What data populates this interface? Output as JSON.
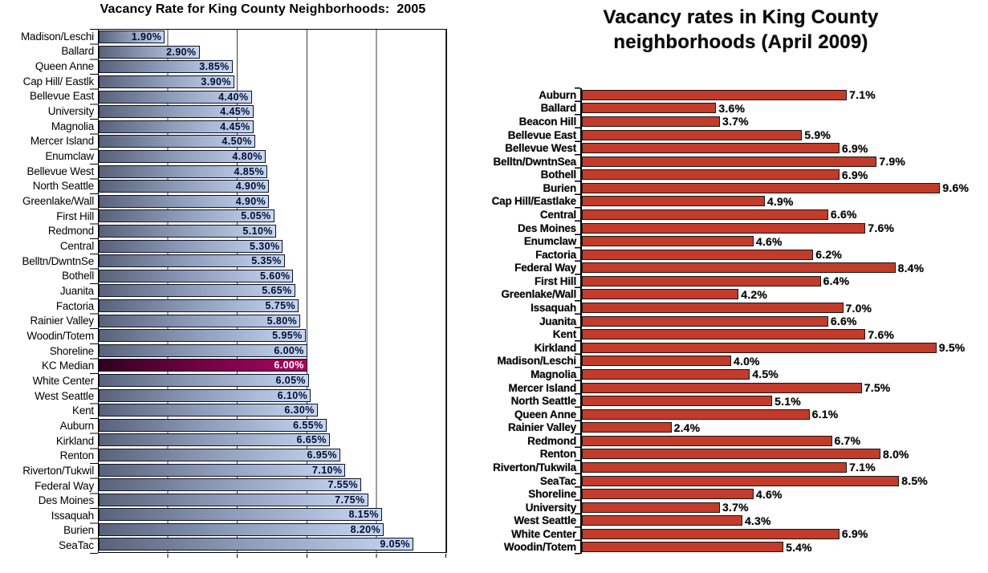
{
  "chart_data": [
    {
      "type": "bar",
      "orientation": "horizontal",
      "title": "Vacancy Rate for King County Neighborhoods:  2005",
      "xlabel": "",
      "ylabel": "",
      "xlim": [
        0,
        10
      ],
      "gridline_values": [
        2,
        4,
        6,
        8
      ],
      "grid": "vertical-lines",
      "unit": "percent",
      "bar_style": {
        "fill_gradient": [
          "#59627A",
          "#C7D8F3"
        ],
        "border": "#0D1126",
        "value_label_color": "#020D30"
      },
      "highlight": {
        "category": "KC Median",
        "fill_gradient": [
          "#2F0122",
          "#A8045F"
        ],
        "label_color": "#FFFFFF"
      },
      "categories": [
        "Madison/Leschi",
        "Ballard",
        "Queen Anne",
        "Cap Hill/ Eastlk",
        "Bellevue East",
        "University",
        "Magnolia",
        "Mercer Island",
        "Enumclaw",
        "Bellevue West",
        "North Seattle",
        "Greenlake/Wall",
        "First Hill",
        "Redmond",
        "Central",
        "Belltn/DwntnSe",
        "Bothell",
        "Juanita",
        "Factoria",
        "Rainier Valley",
        "Woodin/Totem",
        "Shoreline",
        "KC Median",
        "White Center",
        "West Seattle",
        "Kent",
        "Auburn",
        "Kirkland",
        "Renton",
        "Riverton/Tukwil",
        "Federal Way",
        "Des Moines",
        "Issaquah",
        "Burien",
        "SeaTac"
      ],
      "values": [
        1.9,
        2.9,
        3.85,
        3.9,
        4.4,
        4.45,
        4.45,
        4.5,
        4.8,
        4.85,
        4.9,
        4.9,
        5.05,
        5.1,
        5.3,
        5.35,
        5.6,
        5.65,
        5.75,
        5.8,
        5.95,
        6.0,
        6.0,
        6.05,
        6.1,
        6.3,
        6.55,
        6.65,
        6.95,
        7.1,
        7.55,
        7.75,
        8.15,
        8.2,
        9.05
      ],
      "value_labels": [
        "1.90%",
        "2.90%",
        "3.85%",
        "3.90%",
        "4.40%",
        "4.45%",
        "4.45%",
        "4.50%",
        "4.80%",
        "4.85%",
        "4.90%",
        "4.90%",
        "5.05%",
        "5.10%",
        "5.30%",
        "5.35%",
        "5.60%",
        "5.65%",
        "5.75%",
        "5.80%",
        "5.95%",
        "6.00%",
        "6.00%",
        "6.05%",
        "6.10%",
        "6.30%",
        "6.55%",
        "6.65%",
        "6.95%",
        "7.10%",
        "7.55%",
        "7.75%",
        "8.15%",
        "8.20%",
        "9.05%"
      ]
    },
    {
      "type": "bar",
      "orientation": "horizontal",
      "title": "Vacancy rates in King County neighborhoods (April 2009)",
      "title_lines": [
        "Vacancy rates in King County",
        "neighborhoods (April 2009)"
      ],
      "xlabel": "",
      "ylabel": "",
      "xlim": [
        0,
        10
      ],
      "grid": "off",
      "unit": "percent",
      "bar_style": {
        "fill": "#C23B2B",
        "border": "#1A1512",
        "value_label_color": "#0A0A0A"
      },
      "categories": [
        "Auburn",
        "Ballard",
        "Beacon Hill",
        "Bellevue East",
        "Bellevue West",
        "Belltn/DwntnSea",
        "Bothell",
        "Burien",
        "Cap Hill/Eastlake",
        "Central",
        "Des Moines",
        "Enumclaw",
        "Factoria",
        "Federal Way",
        "First Hill",
        "Greenlake/Wall",
        "Issaquah",
        "Juanita",
        "Kent",
        "Kirkland",
        "Madison/Leschi",
        "Magnolia",
        "Mercer Island",
        "North Seattle",
        "Queen Anne",
        "Rainier Valley",
        "Redmond",
        "Renton",
        "Riverton/Tukwila",
        "SeaTac",
        "Shoreline",
        "University",
        "West Seattle",
        "White Center",
        "Woodin/Totem"
      ],
      "values": [
        7.1,
        3.6,
        3.7,
        5.9,
        6.9,
        7.9,
        6.9,
        9.6,
        4.9,
        6.6,
        7.6,
        4.6,
        6.2,
        8.4,
        6.4,
        4.2,
        7.0,
        6.6,
        7.6,
        9.5,
        4.0,
        4.5,
        7.5,
        5.1,
        6.1,
        2.4,
        6.7,
        8.0,
        7.1,
        8.5,
        4.6,
        3.7,
        4.3,
        6.9,
        5.4
      ],
      "value_labels": [
        "7.1%",
        "3.6%",
        "3.7%",
        "5.9%",
        "6.9%",
        "7.9%",
        "6.9%",
        "9.6%",
        "4.9%",
        "6.6%",
        "7.6%",
        "4.6%",
        "6.2%",
        "8.4%",
        "6.4%",
        "4.2%",
        "7.0%",
        "6.6%",
        "7.6%",
        "9.5%",
        "4.0%",
        "4.5%",
        "7.5%",
        "5.1%",
        "6.1%",
        "2.4%",
        "6.7%",
        "8.0%",
        "7.1%",
        "8.5%",
        "4.6%",
        "3.7%",
        "4.3%",
        "6.9%",
        "5.4%"
      ]
    }
  ]
}
